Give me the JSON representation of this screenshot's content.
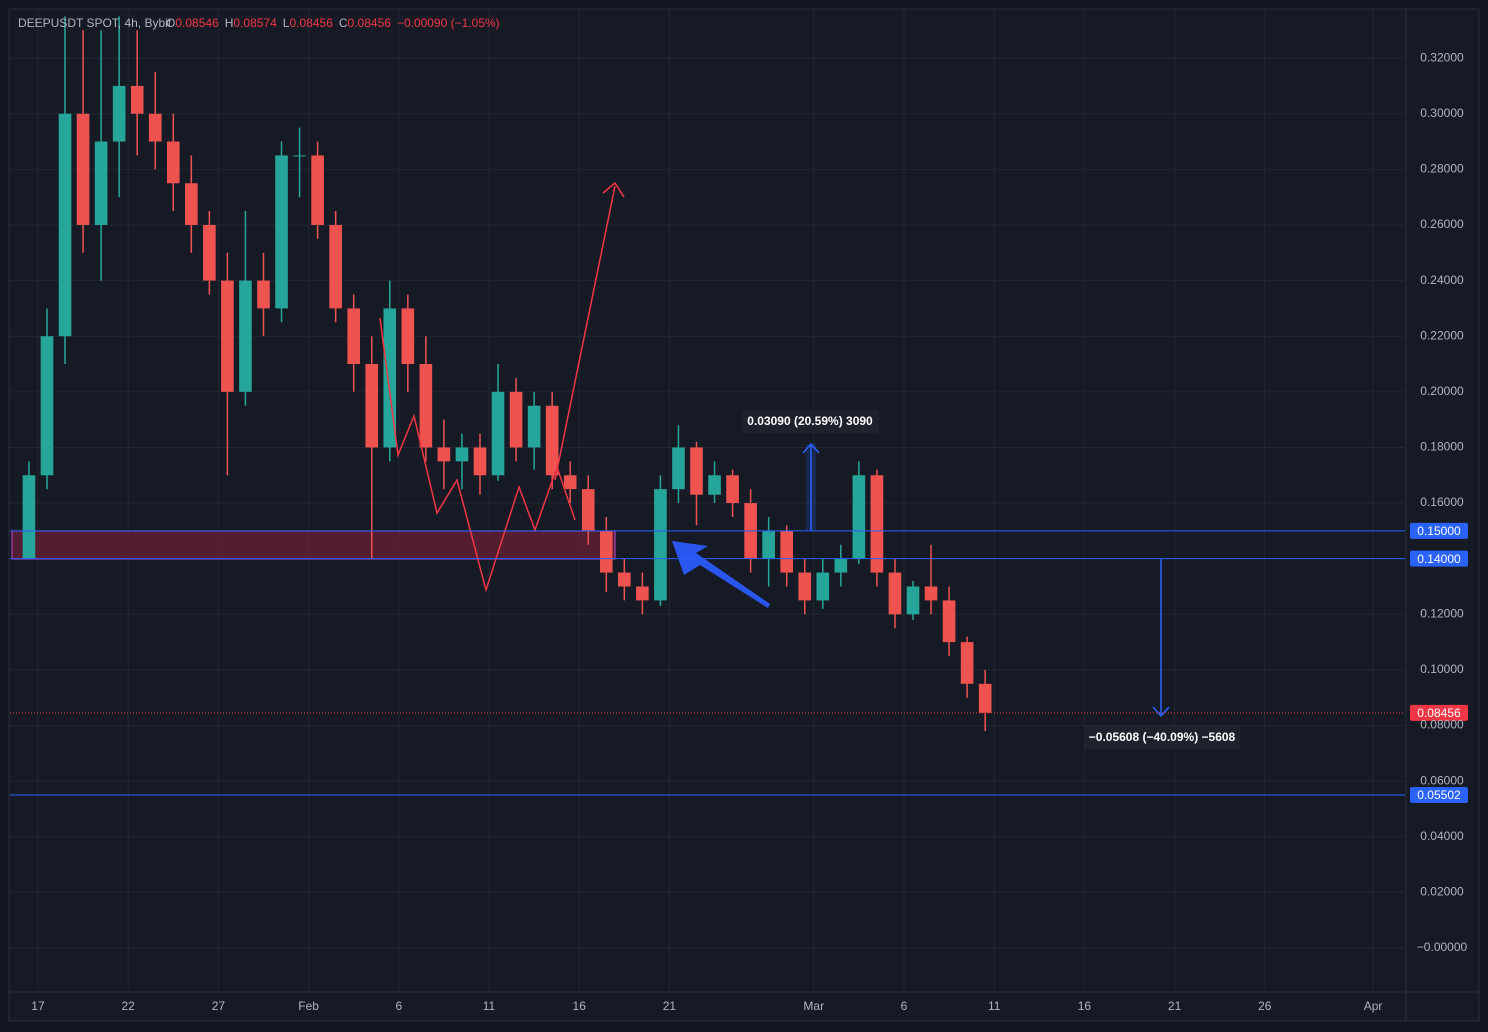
{
  "chart_data": {
    "type": "candlestick",
    "title": "DEEPUSDT SPOT, 4h, Bybit",
    "legend_ohlc": [
      {
        "label": "O",
        "value": "0.08546"
      },
      {
        "label": "H",
        "value": "0.08574"
      },
      {
        "label": "L",
        "value": "0.08456"
      },
      {
        "label": "C",
        "value": "0.08456"
      }
    ],
    "change": "−0.00090 (−1.05%)",
    "x": [
      16,
      17,
      18,
      19,
      20,
      21,
      22,
      23,
      24,
      25,
      26,
      27,
      28,
      29,
      30,
      31,
      32,
      33,
      34,
      35,
      36,
      37,
      38,
      39,
      40,
      41,
      42,
      43,
      44,
      45,
      46,
      47,
      48,
      49,
      50,
      51,
      52,
      53,
      54,
      55,
      56,
      57,
      58,
      59,
      60,
      61,
      62,
      63,
      64,
      65,
      66,
      67,
      68,
      69
    ],
    "open": [
      0.14,
      0.17,
      0.22,
      0.3,
      0.26,
      0.29,
      0.31,
      0.3,
      0.29,
      0.275,
      0.26,
      0.24,
      0.2,
      0.24,
      0.23,
      0.285,
      0.285,
      0.26,
      0.23,
      0.21,
      0.18,
      0.23,
      0.21,
      0.18,
      0.175,
      0.18,
      0.17,
      0.2,
      0.18,
      0.195,
      0.17,
      0.165,
      0.15,
      0.135,
      0.13,
      0.125,
      0.165,
      0.18,
      0.163,
      0.17,
      0.16,
      0.14,
      0.15,
      0.135,
      0.125,
      0.135,
      0.14,
      0.17,
      0.135,
      0.12,
      0.13,
      0.125,
      0.11,
      0.095
    ],
    "high": [
      0.175,
      0.23,
      0.335,
      0.33,
      0.33,
      0.335,
      0.33,
      0.315,
      0.3,
      0.285,
      0.265,
      0.25,
      0.265,
      0.25,
      0.29,
      0.295,
      0.29,
      0.265,
      0.235,
      0.22,
      0.24,
      0.235,
      0.22,
      0.19,
      0.185,
      0.185,
      0.21,
      0.205,
      0.2,
      0.2,
      0.175,
      0.17,
      0.155,
      0.14,
      0.135,
      0.17,
      0.188,
      0.182,
      0.175,
      0.172,
      0.165,
      0.155,
      0.152,
      0.14,
      0.14,
      0.145,
      0.175,
      0.172,
      0.14,
      0.132,
      0.145,
      0.13,
      0.112,
      0.1
    ],
    "low": [
      0.14,
      0.165,
      0.21,
      0.25,
      0.24,
      0.27,
      0.285,
      0.28,
      0.265,
      0.25,
      0.235,
      0.17,
      0.195,
      0.22,
      0.225,
      0.27,
      0.255,
      0.225,
      0.2,
      0.14,
      0.175,
      0.2,
      0.175,
      0.165,
      0.165,
      0.163,
      0.168,
      0.175,
      0.172,
      0.165,
      0.16,
      0.145,
      0.128,
      0.125,
      0.12,
      0.123,
      0.16,
      0.152,
      0.16,
      0.155,
      0.135,
      0.13,
      0.13,
      0.12,
      0.122,
      0.13,
      0.138,
      0.13,
      0.115,
      0.118,
      0.12,
      0.105,
      0.09,
      0.078
    ],
    "close": [
      0.17,
      0.22,
      0.3,
      0.26,
      0.29,
      0.31,
      0.3,
      0.29,
      0.275,
      0.26,
      0.24,
      0.2,
      0.24,
      0.23,
      0.285,
      0.285,
      0.26,
      0.23,
      0.21,
      0.18,
      0.23,
      0.21,
      0.18,
      0.175,
      0.18,
      0.17,
      0.2,
      0.18,
      0.195,
      0.17,
      0.165,
      0.15,
      0.135,
      0.13,
      0.125,
      0.165,
      0.18,
      0.163,
      0.17,
      0.16,
      0.14,
      0.15,
      0.135,
      0.125,
      0.135,
      0.14,
      0.17,
      0.135,
      0.12,
      0.13,
      0.125,
      0.11,
      0.095,
      0.08456
    ],
    "up_color": "#26a69a",
    "down_color": "#ef5350",
    "xlim": [
      15.45,
      92.77
    ],
    "xticks": [
      17,
      22,
      27,
      {
        "value": 32,
        "label": "Feb"
      },
      {
        "value": 37,
        "label": "6"
      },
      {
        "value": 42,
        "label": "11"
      },
      {
        "value": 47,
        "label": "16"
      },
      {
        "value": 52,
        "label": "21"
      },
      {
        "value": 60,
        "label": "Mar"
      },
      {
        "value": 65,
        "label": "6"
      },
      {
        "value": 70,
        "label": "11"
      },
      {
        "value": 75,
        "label": "16"
      },
      {
        "value": 80,
        "label": "21"
      },
      {
        "value": 85,
        "label": "26"
      },
      {
        "value": 91,
        "label": "Apr"
      }
    ],
    "ylim": [
      -0.0151,
      0.3373
    ],
    "yticks": [
      {
        "value": 0.32,
        "label": "0.32000"
      },
      {
        "value": 0.3,
        "label": "0.30000"
      },
      {
        "value": 0.28,
        "label": "0.28000"
      },
      {
        "value": 0.26,
        "label": "0.26000"
      },
      {
        "value": 0.24,
        "label": "0.24000"
      },
      {
        "value": 0.22,
        "label": "0.22000"
      },
      {
        "value": 0.2,
        "label": "0.20000"
      },
      {
        "value": 0.18,
        "label": "0.18000"
      },
      {
        "value": 0.16,
        "label": "0.16000"
      },
      {
        "value": 0.12,
        "label": "0.12000"
      },
      {
        "value": 0.1,
        "label": "0.10000"
      },
      {
        "value": 0.08,
        "label": "0.08000"
      },
      {
        "value": 0.06,
        "label": "0.06000"
      },
      {
        "value": 0.04,
        "label": "0.04000"
      },
      {
        "value": 0.02,
        "label": "0.02000"
      },
      {
        "value": 0,
        "label": "−0.00000"
      }
    ],
    "grid": true,
    "levels": [
      {
        "value": 0.15,
        "label": "0.15000",
        "color": "#2962ff"
      },
      {
        "value": 0.14,
        "label": "0.14000",
        "color": "#2962ff"
      },
      {
        "value": 0.08456,
        "label": "0.08456",
        "color": "#f23645",
        "dotted": true
      },
      {
        "value": 0.05502,
        "label": "0.05502",
        "color": "#2962ff"
      }
    ],
    "measurements": [
      {
        "label": "0.03090 (20.59%) 3090"
      },
      {
        "label": "−0.05608 (−40.09%) −5608"
      }
    ]
  }
}
